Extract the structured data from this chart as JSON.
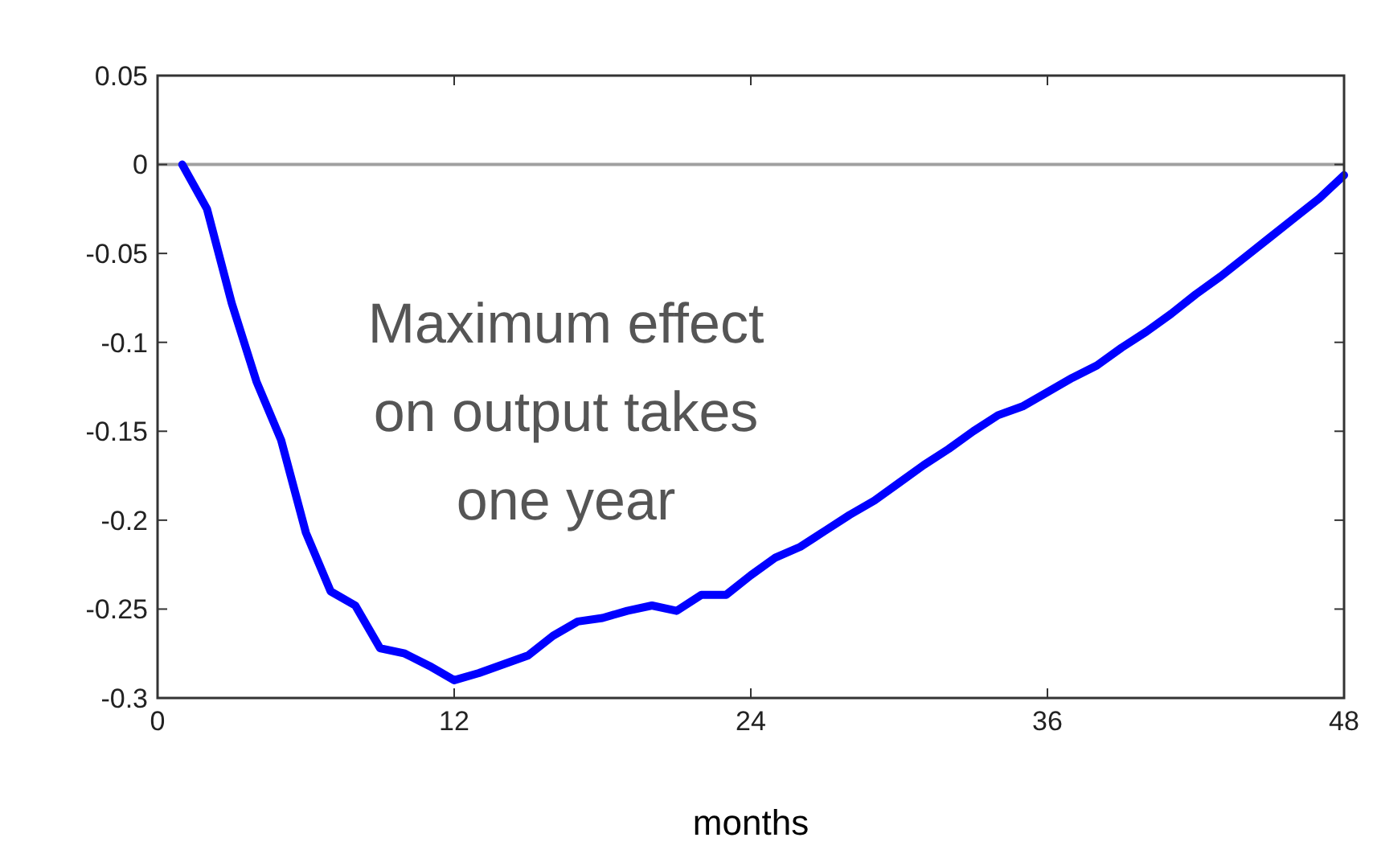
{
  "chart_data": {
    "type": "line",
    "xlabel": "months",
    "x": [
      1,
      2,
      3,
      4,
      5,
      6,
      7,
      8,
      9,
      10,
      11,
      12,
      13,
      14,
      15,
      16,
      17,
      18,
      19,
      20,
      21,
      22,
      23,
      24,
      25,
      26,
      27,
      28,
      29,
      30,
      31,
      32,
      33,
      34,
      35,
      36,
      37,
      38,
      39,
      40,
      41,
      42,
      43,
      44,
      45,
      46,
      47,
      48
    ],
    "series": [
      {
        "color": "#0000ff",
        "values": [
          0,
          -0.025,
          -0.078,
          -0.122,
          -0.155,
          -0.207,
          -0.24,
          -0.248,
          -0.272,
          -0.275,
          -0.282,
          -0.29,
          -0.286,
          -0.281,
          -0.276,
          -0.265,
          -0.257,
          -0.255,
          -0.251,
          -0.248,
          -0.251,
          -0.242,
          -0.242,
          -0.231,
          -0.221,
          -0.215,
          -0.206,
          -0.197,
          -0.189,
          -0.179,
          -0.169,
          -0.16,
          -0.15,
          -0.141,
          -0.136,
          -0.128,
          -0.12,
          -0.113,
          -0.103,
          -0.094,
          -0.084,
          -0.073,
          -0.063,
          -0.052,
          -0.041,
          -0.03,
          -0.019,
          -0.006
        ]
      }
    ],
    "xlim": [
      0,
      48
    ],
    "xticks": [
      0,
      12,
      24,
      36,
      48
    ],
    "ylim": [
      -0.3,
      0.05
    ],
    "yticks": [
      {
        "value": -0.3,
        "label": "-0.3"
      },
      {
        "value": -0.25,
        "label": "-0.25"
      },
      {
        "value": -0.2,
        "label": "-0.2"
      },
      {
        "value": -0.15,
        "label": "-0.15"
      },
      {
        "value": -0.1,
        "label": "-0.1"
      },
      {
        "value": -0.05,
        "label": "-0.05"
      },
      {
        "value": 0,
        "label": "0"
      },
      {
        "value": 0.05,
        "label": "0.05"
      }
    ],
    "ref_lines": [
      {
        "axis": "y",
        "value": 0,
        "color": "#a0a0a0"
      }
    ],
    "annotations": [
      "Maximum effect\non output takes\none year"
    ],
    "grid": false,
    "marker": "none",
    "line_style": "solid"
  }
}
